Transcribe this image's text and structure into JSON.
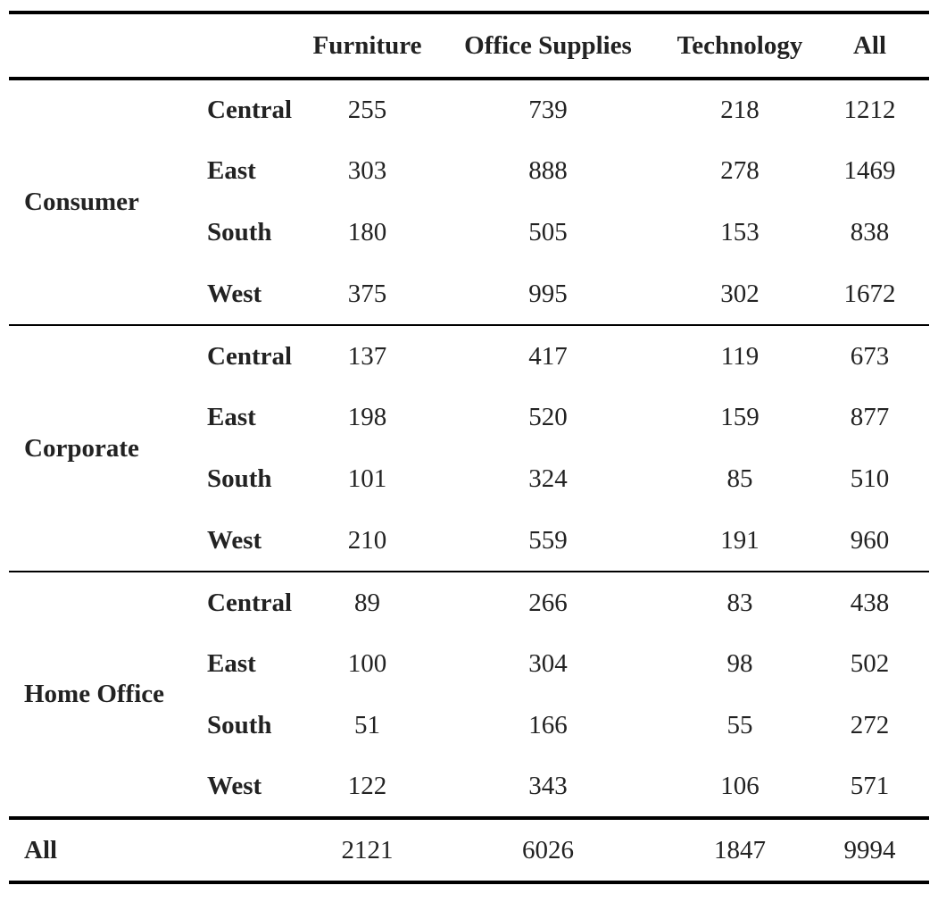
{
  "chart_data": {
    "type": "table",
    "columns": [
      "Furniture",
      "Office Supplies",
      "Technology",
      "All"
    ],
    "groups": [
      {
        "segment": "Consumer",
        "rows": [
          {
            "region": "Central",
            "values": [
              255,
              739,
              218,
              1212
            ]
          },
          {
            "region": "East",
            "values": [
              303,
              888,
              278,
              1469
            ]
          },
          {
            "region": "South",
            "values": [
              180,
              505,
              153,
              838
            ]
          },
          {
            "region": "West",
            "values": [
              375,
              995,
              302,
              1672
            ]
          }
        ]
      },
      {
        "segment": "Corporate",
        "rows": [
          {
            "region": "Central",
            "values": [
              137,
              417,
              119,
              673
            ]
          },
          {
            "region": "East",
            "values": [
              198,
              520,
              159,
              877
            ]
          },
          {
            "region": "South",
            "values": [
              101,
              324,
              85,
              510
            ]
          },
          {
            "region": "West",
            "values": [
              210,
              559,
              191,
              960
            ]
          }
        ]
      },
      {
        "segment": "Home Office",
        "rows": [
          {
            "region": "Central",
            "values": [
              89,
              266,
              83,
              438
            ]
          },
          {
            "region": "East",
            "values": [
              100,
              304,
              98,
              502
            ]
          },
          {
            "region": "South",
            "values": [
              51,
              166,
              55,
              272
            ]
          },
          {
            "region": "West",
            "values": [
              122,
              343,
              106,
              571
            ]
          }
        ]
      }
    ],
    "total": {
      "label": "All",
      "values": [
        2121,
        6026,
        1847,
        9994
      ]
    }
  }
}
